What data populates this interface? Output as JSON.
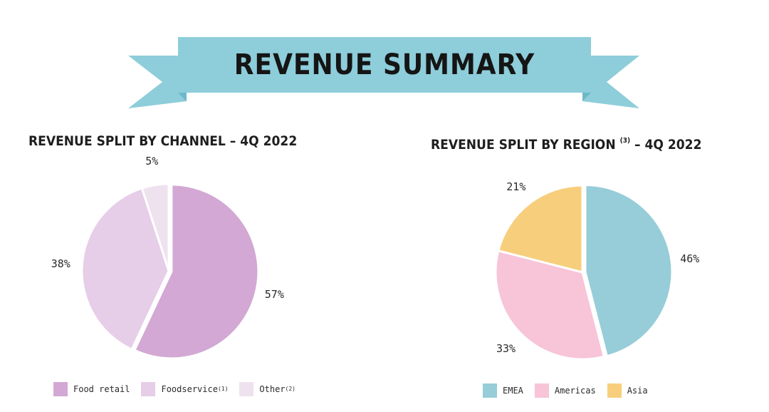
{
  "banner": {
    "title": "REVENUE SUMMARY",
    "color": "#8ecdda",
    "dark_color": "#6db8c9"
  },
  "chart_data": [
    {
      "type": "pie",
      "title": "REVENUE SPLIT BY CHANNEL – 4Q 2022",
      "labels": [
        "Food retail",
        "Foodservice",
        "Other"
      ],
      "label_superscripts": [
        "",
        "(1)",
        "(2)"
      ],
      "values": [
        57,
        38,
        5
      ],
      "value_labels": [
        "57%",
        "38%",
        "5%"
      ],
      "colors": [
        "#d3a8d4",
        "#e6cde8",
        "#efe2ef"
      ],
      "exploded_slice": "Food retail",
      "legend": "bottom"
    },
    {
      "type": "pie",
      "title": "REVENUE SPLIT BY REGION",
      "title_superscript": "(3)",
      "title_suffix": "– 4Q 2022",
      "labels": [
        "EMEA",
        "Americas",
        "Asia"
      ],
      "values": [
        46,
        33,
        21
      ],
      "value_labels": [
        "46%",
        "33%",
        "21%"
      ],
      "colors": [
        "#96cdd8",
        "#f7c4d8",
        "#f7cf7c"
      ],
      "exploded_slice": "EMEA",
      "legend": "bottom"
    }
  ]
}
